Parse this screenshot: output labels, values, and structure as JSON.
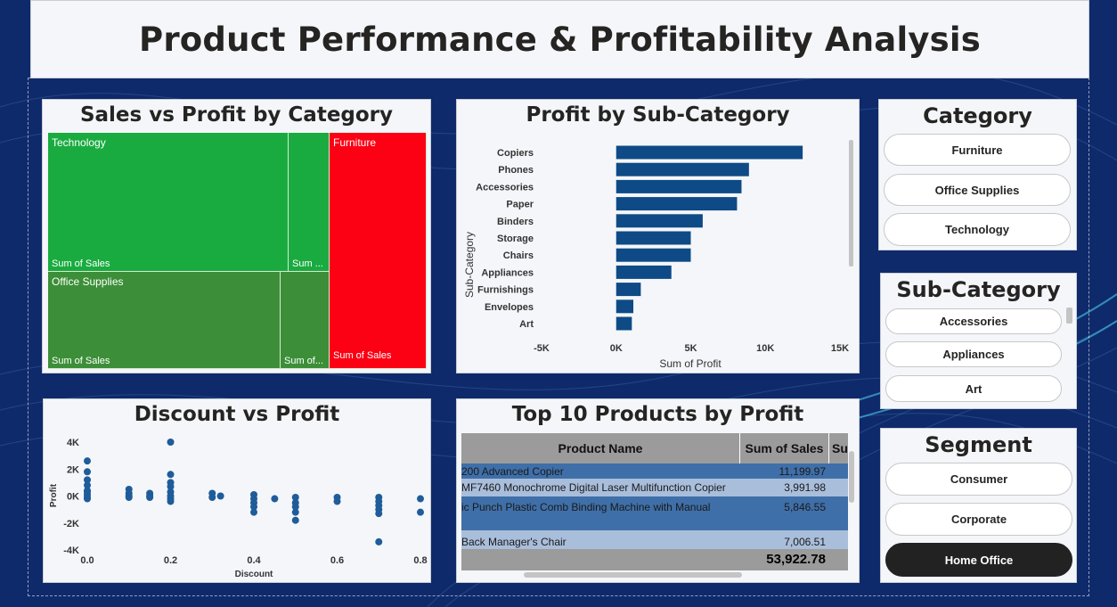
{
  "title": "Product Performance & Profitability Analysis",
  "treemap": {
    "title": "Sales vs Profit by Category",
    "tiles": [
      {
        "label": "Technology",
        "footer": "Sum of Sales",
        "color": "#1aab40"
      },
      {
        "label": "",
        "footer": "Sum ...",
        "color": "#1aab40"
      },
      {
        "label": "Office Supplies",
        "footer": "Sum of Sales",
        "color": "#3c8f38"
      },
      {
        "label": "",
        "footer": "Sum of...",
        "color": "#3c8f38"
      },
      {
        "label": "Furniture",
        "footer": "Sum of Sales",
        "color": "#fc0014"
      }
    ]
  },
  "chart_data": [
    {
      "type": "bar",
      "orientation": "horizontal",
      "title": "Profit by Sub-Category",
      "xlabel": "Sum of Profit",
      "ylabel": "Sub-Category",
      "categories": [
        "Copiers",
        "Phones",
        "Accessories",
        "Paper",
        "Binders",
        "Storage",
        "Chairs",
        "Appliances",
        "Furnishings",
        "Envelopes",
        "Art"
      ],
      "values": [
        12500,
        8900,
        8400,
        8100,
        5800,
        5000,
        5000,
        3700,
        1650,
        1150,
        1050
      ],
      "xlim": [
        -5000,
        15000
      ],
      "xticks": [
        "-5K",
        "0K",
        "5K",
        "10K",
        "15K"
      ],
      "color": "#0e4a86"
    },
    {
      "type": "scatter",
      "title": "Discount vs Profit",
      "xlabel": "Discount",
      "ylabel": "Profit",
      "xlim": [
        0,
        0.8
      ],
      "ylim": [
        -4000,
        4000
      ],
      "xticks": [
        "0.0",
        "0.2",
        "0.4",
        "0.6",
        "0.8"
      ],
      "yticks": [
        "4K",
        "2K",
        "0K",
        "-2K",
        "-4K"
      ],
      "color": "#1f5c99",
      "points": [
        [
          0.0,
          2600
        ],
        [
          0.0,
          1800
        ],
        [
          0.0,
          1200
        ],
        [
          0.0,
          800
        ],
        [
          0.0,
          400
        ],
        [
          0.0,
          100
        ],
        [
          0.0,
          -200
        ],
        [
          0.0,
          -100
        ],
        [
          0.0,
          300
        ],
        [
          0.1,
          500
        ],
        [
          0.1,
          200
        ],
        [
          0.1,
          0
        ],
        [
          0.1,
          -100
        ],
        [
          0.15,
          200
        ],
        [
          0.15,
          0
        ],
        [
          0.15,
          -100
        ],
        [
          0.2,
          4000
        ],
        [
          0.2,
          1600
        ],
        [
          0.2,
          1000
        ],
        [
          0.2,
          700
        ],
        [
          0.2,
          300
        ],
        [
          0.2,
          0
        ],
        [
          0.2,
          -200
        ],
        [
          0.2,
          -400
        ],
        [
          0.3,
          200
        ],
        [
          0.3,
          -100
        ],
        [
          0.32,
          0
        ],
        [
          0.4,
          100
        ],
        [
          0.4,
          -200
        ],
        [
          0.4,
          -500
        ],
        [
          0.4,
          -800
        ],
        [
          0.4,
          -1200
        ],
        [
          0.45,
          -200
        ],
        [
          0.5,
          -100
        ],
        [
          0.5,
          -500
        ],
        [
          0.5,
          -800
        ],
        [
          0.5,
          -1200
        ],
        [
          0.5,
          -1800
        ],
        [
          0.6,
          -100
        ],
        [
          0.6,
          -400
        ],
        [
          0.7,
          -100
        ],
        [
          0.7,
          -400
        ],
        [
          0.7,
          -700
        ],
        [
          0.7,
          -1000
        ],
        [
          0.7,
          -1300
        ],
        [
          0.7,
          -3400
        ],
        [
          0.8,
          -200
        ],
        [
          0.8,
          -1200
        ]
      ]
    },
    {
      "type": "table",
      "title": "Top 10 Products by Profit",
      "columns": [
        "Product Name",
        "Sum of Sales",
        "Su"
      ],
      "rows": [
        {
          "name": "200 Advanced Copier",
          "sales": "11,199.97"
        },
        {
          "name": "MF7460 Monochrome Digital Laser Multifunction Copier",
          "sales": "3,991.98"
        },
        {
          "name": "ic Punch Plastic Comb Binding Machine with Manual",
          "sales": "5,846.55"
        },
        {
          "name": "Back Manager's Chair",
          "sales": "7,006.51"
        }
      ],
      "total": "53,922.78"
    }
  ],
  "slicers": {
    "category": {
      "title": "Category",
      "options": [
        "Furniture",
        "Office Supplies",
        "Technology"
      ]
    },
    "subcategory": {
      "title": "Sub-Category",
      "options": [
        "Accessories",
        "Appliances",
        "Art"
      ]
    },
    "segment": {
      "title": "Segment",
      "options": [
        "Consumer",
        "Corporate",
        "Home Office"
      ],
      "selected": "Home Office"
    }
  }
}
